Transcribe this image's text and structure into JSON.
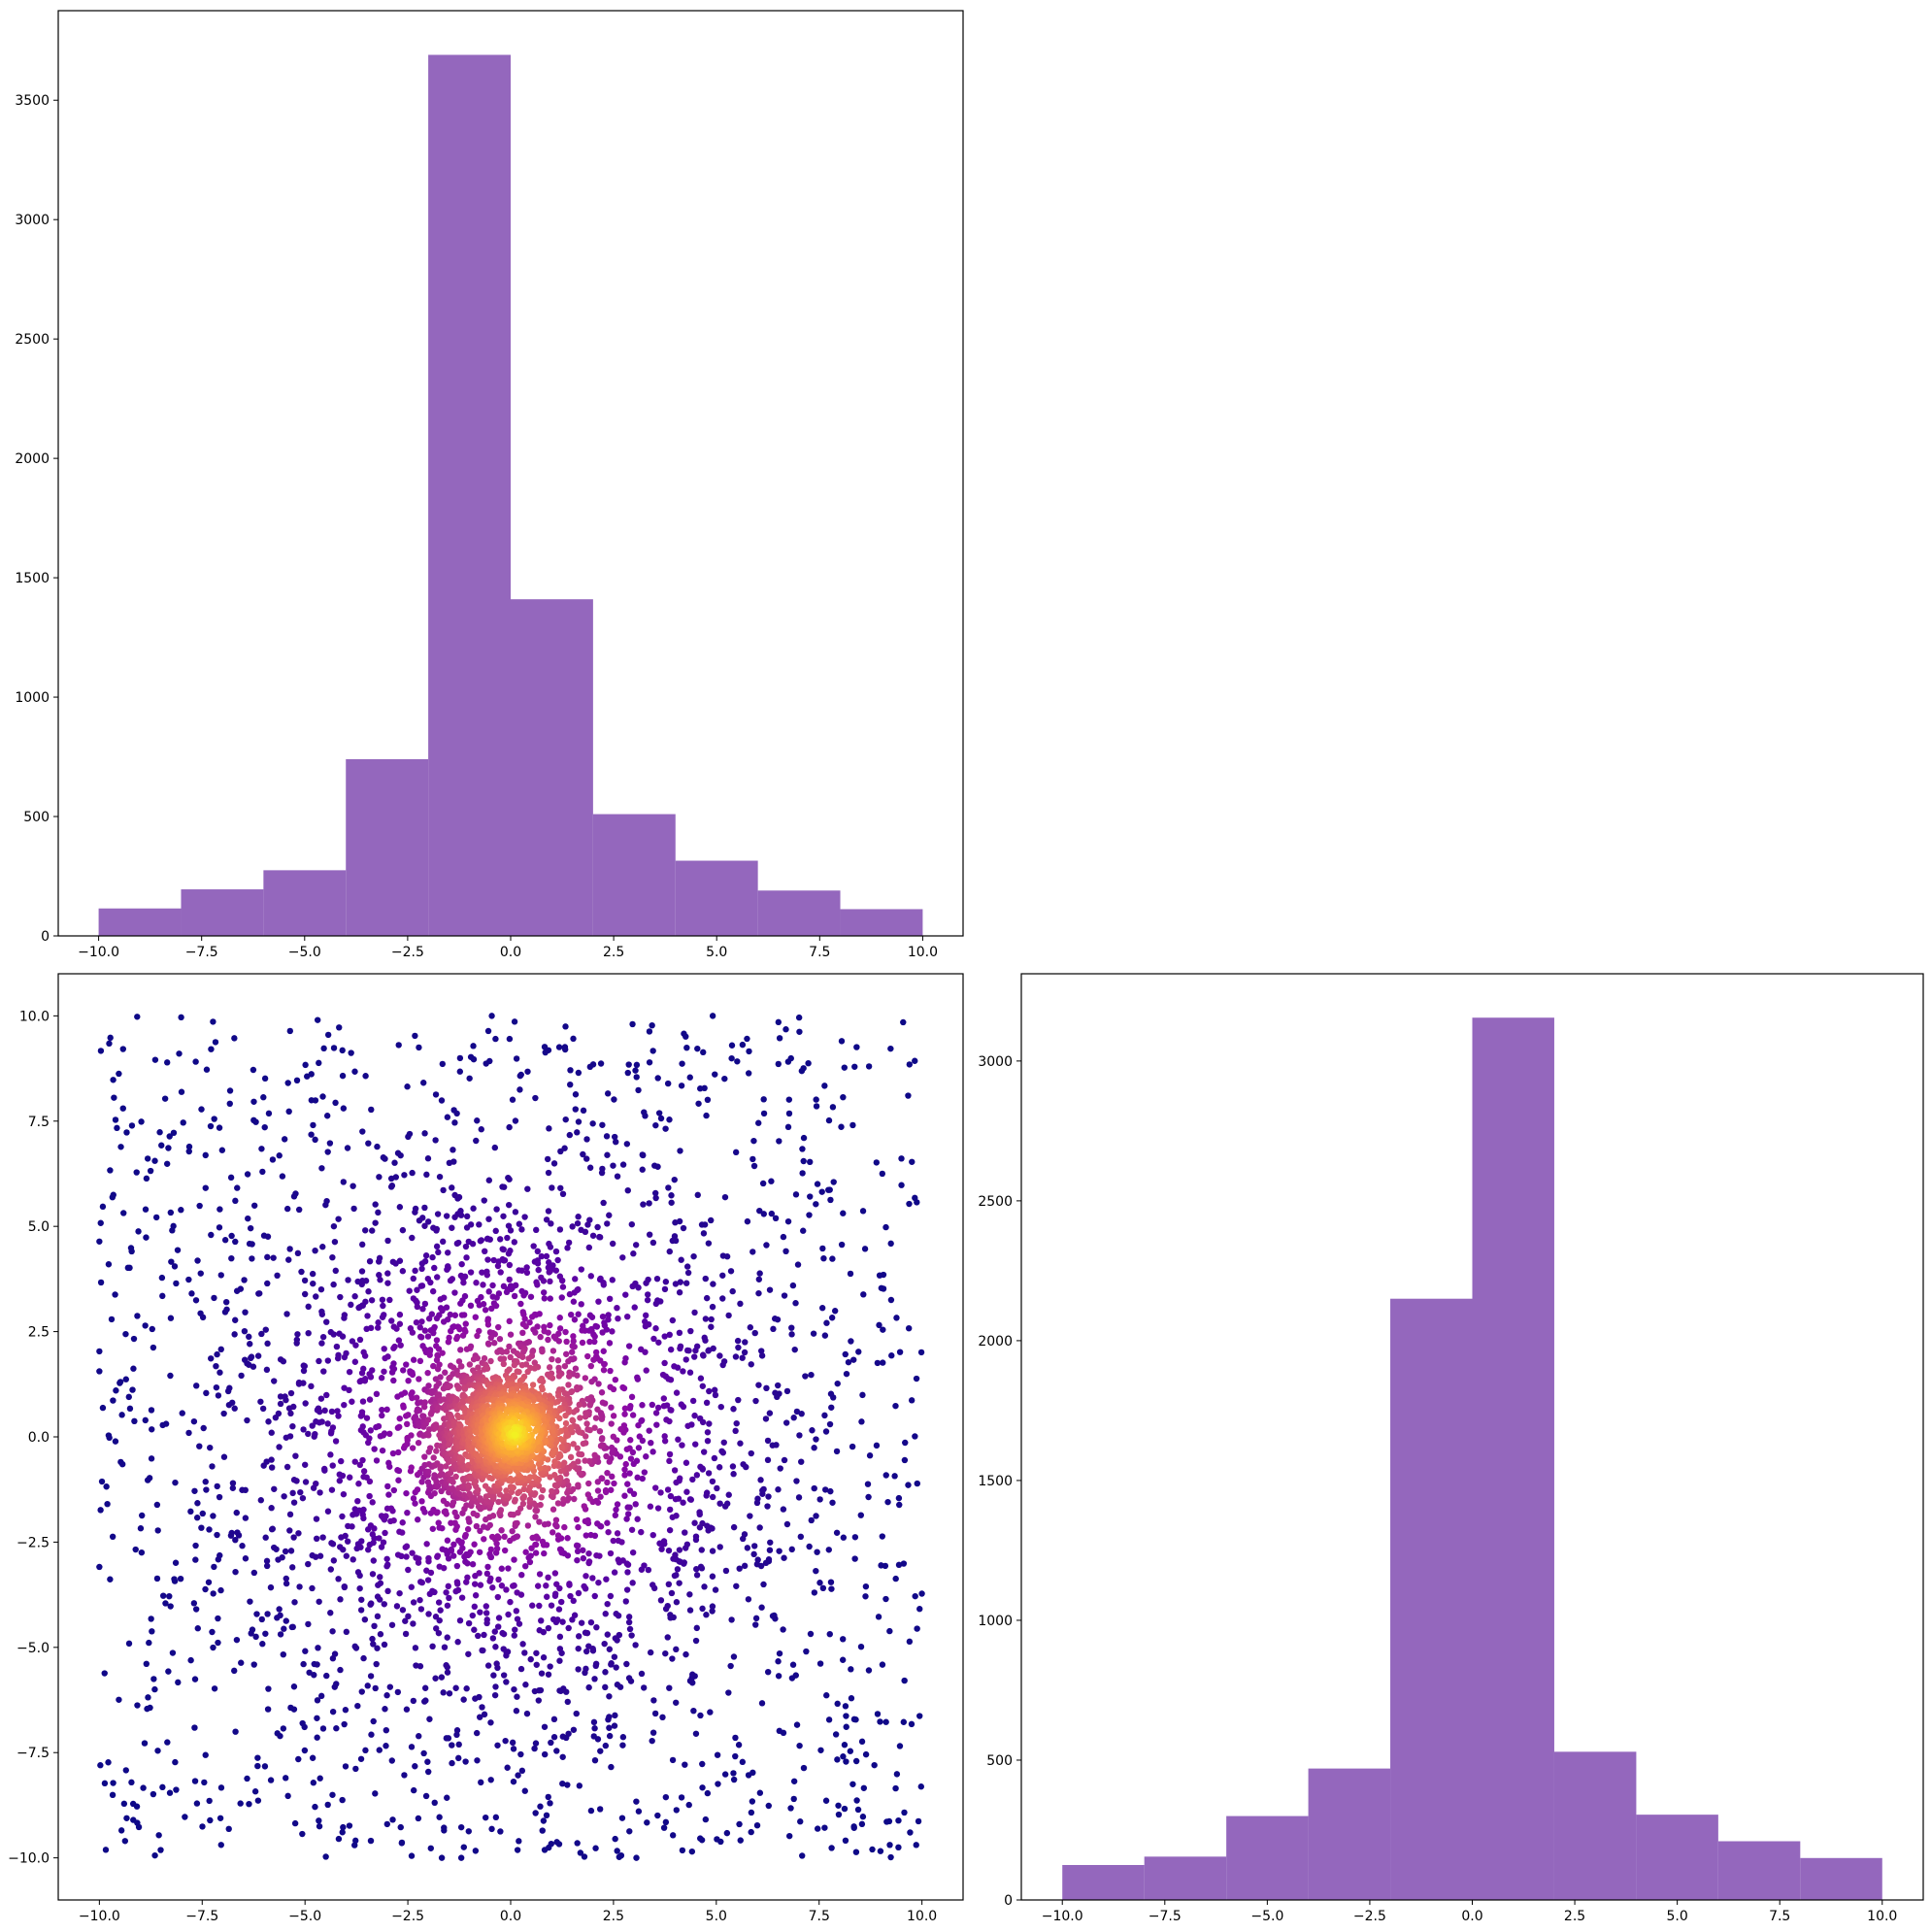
{
  "chart_data": [
    {
      "id": "hist-top",
      "type": "bar",
      "color": "#9467bd",
      "bin_edges": [
        -10,
        -8,
        -6,
        -4,
        -2,
        0,
        2,
        4,
        6,
        8,
        10
      ],
      "values": [
        115,
        195,
        275,
        740,
        3690,
        1410,
        510,
        315,
        190,
        112
      ],
      "xlim": [
        -10.98,
        10.98
      ],
      "ylim": [
        0,
        3875
      ],
      "xticks": [
        -10.0,
        -7.5,
        -5.0,
        -2.5,
        0.0,
        2.5,
        5.0,
        7.5,
        10.0
      ],
      "yticks": [
        0,
        500,
        1000,
        1500,
        2000,
        2500,
        3000,
        3500
      ],
      "xtick_labels": [
        "−10.0",
        "−7.5",
        "−5.0",
        "−2.5",
        "0.0",
        "2.5",
        "5.0",
        "7.5",
        "10.0"
      ],
      "ytick_labels": [
        "0",
        "500",
        "1000",
        "1500",
        "2000",
        "2500",
        "3000",
        "3500"
      ]
    },
    {
      "id": "scatter",
      "type": "scatter",
      "colormap": "plasma",
      "colormap_stops": [
        "#0d0887",
        "#5302a3",
        "#8b0aa5",
        "#b83289",
        "#db5c68",
        "#f48849",
        "#febd2a",
        "#f0f921"
      ],
      "n_points_approx": 4500,
      "x_range": [
        -10,
        10
      ],
      "y_range": [
        -10,
        10
      ],
      "density_peak": [
        0.1,
        0.1
      ],
      "xlim": [
        -11,
        11
      ],
      "ylim": [
        -11,
        11
      ],
      "xticks": [
        -10.0,
        -7.5,
        -5.0,
        -2.5,
        0.0,
        2.5,
        5.0,
        7.5,
        10.0
      ],
      "yticks": [
        -10.0,
        -7.5,
        -5.0,
        -2.5,
        0.0,
        2.5,
        5.0,
        7.5,
        10.0
      ],
      "xtick_labels": [
        "−10.0",
        "−7.5",
        "−5.0",
        "−2.5",
        "0.0",
        "2.5",
        "5.0",
        "7.5",
        "10.0"
      ],
      "ytick_labels": [
        "−10.0",
        "−7.5",
        "−5.0",
        "−2.5",
        "0.0",
        "2.5",
        "5.0",
        "7.5",
        "10.0"
      ]
    },
    {
      "id": "hist-right",
      "type": "bar",
      "color": "#9467bd",
      "bin_edges": [
        -10,
        -8,
        -6,
        -4,
        -2,
        0,
        2,
        4,
        6,
        8,
        10
      ],
      "values": [
        125,
        155,
        300,
        470,
        2150,
        3155,
        530,
        305,
        210,
        150
      ],
      "xlim": [
        -11.0,
        11.0
      ],
      "ylim": [
        0,
        3312
      ],
      "xticks": [
        -10.0,
        -7.5,
        -5.0,
        -2.5,
        0.0,
        2.5,
        5.0,
        7.5,
        10.0
      ],
      "yticks": [
        0,
        500,
        1000,
        1500,
        2000,
        2500,
        3000
      ],
      "xtick_labels": [
        "−10.0",
        "−7.5",
        "−5.0",
        "−2.5",
        "0.0",
        "2.5",
        "5.0",
        "7.5",
        "10.0"
      ],
      "ytick_labels": [
        "0",
        "500",
        "1000",
        "1500",
        "2000",
        "2500",
        "3000"
      ]
    }
  ]
}
